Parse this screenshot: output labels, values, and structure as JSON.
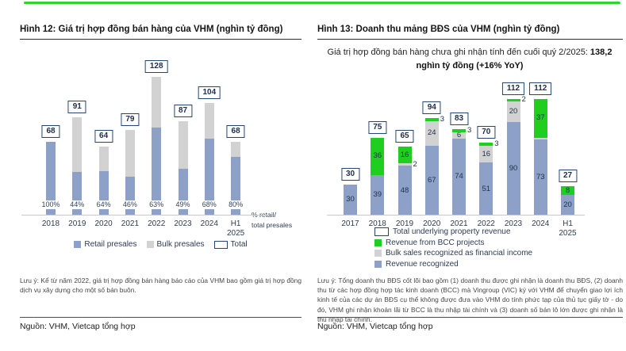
{
  "colors": {
    "blue": "#8CA0C8",
    "gray": "#D2D2D2",
    "green": "#20CE20",
    "box_border": "#26466F",
    "accent_strip": "#2FD52F"
  },
  "left": {
    "title": "Hình 12: Giá trị hợp đồng bán hàng của VHM (nghìn tỷ đồng)",
    "legend": [
      "Retail presales",
      "Bulk presales",
      "Total"
    ],
    "side_note_line1": "% retail/",
    "side_note_line2": "total presales",
    "note": "Lưu ý: Kể từ năm 2022, giá trị hợp đồng bán hàng báo cáo của VHM bao gồm giá trị hợp đồng dịch vụ xây dựng cho một số bán buôn.",
    "source": "Nguồn: VHM, Vietcap tổng hợp"
  },
  "right": {
    "title": "Hình 13: Doanh thu mảng BĐS của VHM (nghìn tỷ đồng)",
    "subtitle_normal": "Giá trị hợp đồng bán hàng chưa ghi nhận tính đến cuối quý 2/2025: ",
    "subtitle_bold": "138,2 nghìn tỷ đồng (+16% YoY)",
    "legend": [
      "Total underlying property revenue",
      "Revenue from BCC projects",
      "Bulk sales recognized as financial income",
      "Revenue recognized"
    ],
    "note": "Lưu ý: Tổng doanh thu BĐS cốt lõi bao gồm (1) doanh thu được ghi nhận là doanh thu BĐS, (2) doanh thu từ các hợp đồng hợp tác kinh doanh (BCC) mà Vingroup (VIC) ký với VHM để chuyển giao lợi ích kinh tế của các dự án BĐS cụ thể không được đưa vào VHM do tính phức tạp của thủ tục giấy tờ - do đó, VHM ghi nhận khoản lãi từ BCC là thu nhập tài chính và (3) doanh số bán lô lớn được ghi nhận là thu nhập tài chính.",
    "source": "Nguồn: VHM, Vietcap tổng hợp"
  },
  "chart_data": [
    {
      "type": "bar",
      "stacked": true,
      "title": "Hình 12: Giá trị hợp đồng bán hàng của VHM (nghìn tỷ đồng)",
      "unit": "nghìn tỷ đồng",
      "categories": [
        "2018",
        "2019",
        "2020",
        "2021",
        "2022",
        "2023",
        "2024",
        "H1 2025"
      ],
      "totals": [
        68,
        91,
        64,
        79,
        128,
        87,
        104,
        68
      ],
      "retail_pct": [
        "100%",
        "44%",
        "64%",
        "46%",
        "63%",
        "49%",
        "68%",
        "80%"
      ],
      "legend": [
        "Retail presales",
        "Bulk presales",
        "Total"
      ],
      "legend_position": "bottom",
      "ylim": [
        0,
        140
      ],
      "bars": [
        {
          "x": "2018",
          "pct": "100%",
          "total": 68,
          "segments": [
            {
              "k": "blue",
              "name": "Retail presales",
              "v": 68
            }
          ]
        },
        {
          "x": "2019",
          "pct": "44%",
          "total": 91,
          "segments": [
            {
              "k": "blue",
              "name": "Retail presales",
              "v": 40
            },
            {
              "k": "gray",
              "name": "Bulk presales",
              "v": 51
            }
          ]
        },
        {
          "x": "2020",
          "pct": "64%",
          "total": 64,
          "segments": [
            {
              "k": "blue",
              "name": "Retail presales",
              "v": 41
            },
            {
              "k": "gray",
              "name": "Bulk presales",
              "v": 23
            }
          ]
        },
        {
          "x": "2021",
          "pct": "46%",
          "total": 79,
          "segments": [
            {
              "k": "blue",
              "name": "Retail presales",
              "v": 36
            },
            {
              "k": "gray",
              "name": "Bulk presales",
              "v": 43
            }
          ]
        },
        {
          "x": "2022",
          "pct": "63%",
          "total": 128,
          "segments": [
            {
              "k": "blue",
              "name": "Retail presales",
              "v": 81
            },
            {
              "k": "gray",
              "name": "Bulk presales",
              "v": 47
            }
          ]
        },
        {
          "x": "2023",
          "pct": "49%",
          "total": 87,
          "segments": [
            {
              "k": "blue",
              "name": "Retail presales",
              "v": 43
            },
            {
              "k": "gray",
              "name": "Bulk presales",
              "v": 44
            }
          ]
        },
        {
          "x": "2024",
          "pct": "68%",
          "total": 104,
          "segments": [
            {
              "k": "blue",
              "name": "Retail presales",
              "v": 71
            },
            {
              "k": "gray",
              "name": "Bulk presales",
              "v": 33
            }
          ]
        },
        {
          "x": "H1 2025",
          "pct": "80%",
          "total": 68,
          "segments": [
            {
              "k": "blue",
              "name": "Retail presales",
              "v": 54
            },
            {
              "k": "gray",
              "name": "Bulk presales",
              "v": 14
            }
          ]
        }
      ]
    },
    {
      "type": "bar",
      "stacked": true,
      "title": "Hình 13: Doanh thu mảng BĐS của VHM (nghìn tỷ đồng)",
      "unit": "nghìn tỷ đồng",
      "categories": [
        "2017",
        "2018",
        "2019",
        "2020",
        "2021",
        "2022",
        "2023",
        "2024",
        "H1 2025"
      ],
      "totals": [
        30,
        75,
        65,
        94,
        83,
        70,
        112,
        112,
        27
      ],
      "legend": [
        "Total underlying property revenue",
        "Revenue from BCC projects",
        "Bulk sales recognized as financial income",
        "Revenue recognized"
      ],
      "legend_position": "bottom",
      "ylim": [
        0,
        130
      ],
      "bars": [
        {
          "x": "2017",
          "total": 30,
          "segments": [
            {
              "k": "blue",
              "name": "Revenue recognized",
              "v": 30,
              "label": "30",
              "pos": "in"
            }
          ]
        },
        {
          "x": "2018",
          "total": 75,
          "segments": [
            {
              "k": "blue",
              "name": "Revenue recognized",
              "v": 39,
              "label": "39",
              "pos": "in"
            },
            {
              "k": "green",
              "name": "Revenue from BCC projects",
              "v": 36,
              "label": "36",
              "pos": "in"
            }
          ]
        },
        {
          "x": "2019",
          "total": 65,
          "segments": [
            {
              "k": "blue",
              "name": "Revenue recognized",
              "v": 48,
              "label": "48",
              "pos": "in"
            },
            {
              "k": "gray",
              "name": "Bulk sales recognized as financial income",
              "v": 2,
              "label": "2",
              "pos": "out"
            },
            {
              "k": "green",
              "name": "Revenue from BCC projects",
              "v": 16,
              "label": "16",
              "pos": "in"
            }
          ]
        },
        {
          "x": "2020",
          "total": 94,
          "segments": [
            {
              "k": "blue",
              "name": "Revenue recognized",
              "v": 67,
              "label": "67",
              "pos": "in"
            },
            {
              "k": "gray",
              "name": "Bulk sales recognized as financial income",
              "v": 24,
              "label": "24",
              "pos": "in"
            },
            {
              "k": "green",
              "name": "Revenue from BCC projects",
              "v": 3,
              "label": "3",
              "pos": "out"
            }
          ]
        },
        {
          "x": "2021",
          "total": 83,
          "segments": [
            {
              "k": "blue",
              "name": "Revenue recognized",
              "v": 74,
              "label": "74",
              "pos": "in"
            },
            {
              "k": "gray",
              "name": "Bulk sales recognized as financial income",
              "v": 6,
              "label": "6",
              "pos": "in"
            },
            {
              "k": "green",
              "name": "Revenue from BCC projects",
              "v": 3,
              "label": "3",
              "pos": "out"
            }
          ]
        },
        {
          "x": "2022",
          "total": 70,
          "segments": [
            {
              "k": "blue",
              "name": "Revenue recognized",
              "v": 51,
              "label": "51",
              "pos": "in"
            },
            {
              "k": "gray",
              "name": "Bulk sales recognized as financial income",
              "v": 16,
              "label": "16",
              "pos": "in"
            },
            {
              "k": "green",
              "name": "Revenue from BCC projects",
              "v": 3,
              "label": "3",
              "pos": "out"
            }
          ]
        },
        {
          "x": "2023",
          "total": 112,
          "segments": [
            {
              "k": "blue",
              "name": "Revenue recognized",
              "v": 90,
              "label": "90",
              "pos": "in"
            },
            {
              "k": "gray",
              "name": "Bulk sales recognized as financial income",
              "v": 20,
              "label": "20",
              "pos": "in"
            },
            {
              "k": "green",
              "name": "Revenue from BCC projects",
              "v": 2,
              "label": "2",
              "pos": "out"
            }
          ]
        },
        {
          "x": "2024",
          "total": 112,
          "segments": [
            {
              "k": "blue",
              "name": "Revenue recognized",
              "v": 73,
              "label": "73",
              "pos": "in"
            },
            {
              "k": "gray",
              "name": "Bulk sales recognized as financial income",
              "v": 2
            },
            {
              "k": "green",
              "name": "Revenue from BCC projects",
              "v": 37,
              "label": "37",
              "pos": "in"
            }
          ]
        },
        {
          "x": "H1 2025",
          "total": 27,
          "segments": [
            {
              "k": "blue",
              "name": "Revenue recognized",
              "v": 20,
              "label": "20",
              "pos": "in"
            },
            {
              "k": "green",
              "name": "Revenue from BCC projects",
              "v": 8,
              "label": "8",
              "pos": "in"
            }
          ]
        }
      ]
    }
  ]
}
